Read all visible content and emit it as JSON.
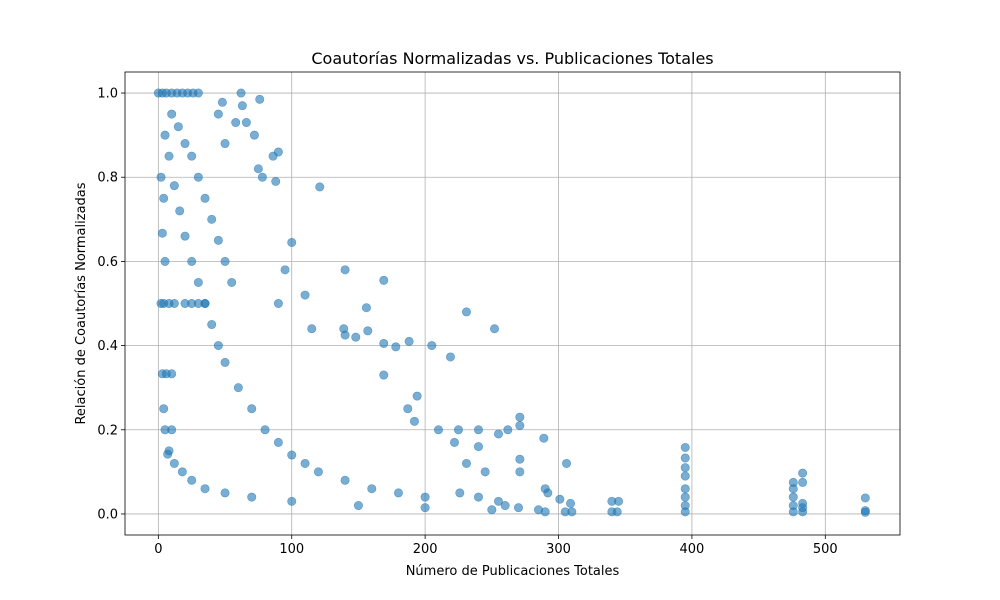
{
  "chart_data": {
    "type": "scatter",
    "title": "Coautorías Normalizadas vs. Publicaciones Totales",
    "xlabel": "Número de Publicaciones Totales",
    "ylabel": "Relación de Coautorías Normalizadas",
    "xlim": [
      -25,
      556
    ],
    "ylim": [
      -0.05,
      1.05
    ],
    "xticks": [
      0,
      100,
      200,
      300,
      400,
      500
    ],
    "xtick_labels": [
      "0",
      "100",
      "200",
      "300",
      "400",
      "500"
    ],
    "yticks": [
      0.0,
      0.2,
      0.4,
      0.6,
      0.8,
      1.0
    ],
    "ytick_labels": [
      "0.0",
      "0.2",
      "0.4",
      "0.6",
      "0.8",
      "1.0"
    ],
    "grid": true,
    "marker_color": "#1f77b4",
    "marker_alpha": 0.6,
    "series": [
      {
        "points": [
          [
            0,
            1.0
          ],
          [
            3,
            1.0
          ],
          [
            6,
            1.0
          ],
          [
            10,
            1.0
          ],
          [
            14,
            1.0
          ],
          [
            18,
            1.0
          ],
          [
            22,
            1.0
          ],
          [
            26,
            1.0
          ],
          [
            30,
            1.0
          ],
          [
            2,
            0.8
          ],
          [
            4,
            0.75
          ],
          [
            3,
            0.667
          ],
          [
            5,
            0.6
          ],
          [
            2,
            0.5
          ],
          [
            4,
            0.5
          ],
          [
            8,
            0.5
          ],
          [
            12,
            0.5
          ],
          [
            20,
            0.5
          ],
          [
            25,
            0.5
          ],
          [
            30,
            0.5
          ],
          [
            35,
            0.5
          ],
          [
            3,
            0.333
          ],
          [
            6,
            0.333
          ],
          [
            10,
            0.333
          ],
          [
            4,
            0.25
          ],
          [
            5,
            0.2
          ],
          [
            10,
            0.2
          ],
          [
            7,
            0.142
          ],
          [
            5,
            0.9
          ],
          [
            8,
            0.85
          ],
          [
            12,
            0.78
          ],
          [
            16,
            0.72
          ],
          [
            20,
            0.66
          ],
          [
            25,
            0.6
          ],
          [
            30,
            0.55
          ],
          [
            35,
            0.5
          ],
          [
            40,
            0.45
          ],
          [
            45,
            0.4
          ],
          [
            50,
            0.36
          ],
          [
            60,
            0.3
          ],
          [
            70,
            0.25
          ],
          [
            80,
            0.2
          ],
          [
            90,
            0.17
          ],
          [
            100,
            0.14
          ],
          [
            110,
            0.12
          ],
          [
            120,
            0.1
          ],
          [
            140,
            0.08
          ],
          [
            160,
            0.06
          ],
          [
            180,
            0.05
          ],
          [
            200,
            0.04
          ],
          [
            10,
            0.95
          ],
          [
            15,
            0.92
          ],
          [
            20,
            0.88
          ],
          [
            25,
            0.85
          ],
          [
            30,
            0.8
          ],
          [
            35,
            0.75
          ],
          [
            40,
            0.7
          ],
          [
            45,
            0.65
          ],
          [
            50,
            0.6
          ],
          [
            55,
            0.55
          ],
          [
            8,
            0.15
          ],
          [
            12,
            0.12
          ],
          [
            18,
            0.1
          ],
          [
            25,
            0.08
          ],
          [
            35,
            0.06
          ],
          [
            50,
            0.05
          ],
          [
            70,
            0.04
          ],
          [
            100,
            0.03
          ],
          [
            150,
            0.02
          ],
          [
            200,
            0.015
          ],
          [
            250,
            0.01
          ],
          [
            62,
            1.0
          ],
          [
            76,
            0.985
          ],
          [
            48,
            0.978
          ],
          [
            58,
            0.93
          ],
          [
            66,
            0.93
          ],
          [
            45,
            0.95
          ],
          [
            63,
            0.97
          ],
          [
            50,
            0.88
          ],
          [
            72,
            0.9
          ],
          [
            90,
            0.86
          ],
          [
            86,
            0.85
          ],
          [
            75,
            0.82
          ],
          [
            78,
            0.8
          ],
          [
            88,
            0.79
          ],
          [
            121,
            0.777
          ],
          [
            100,
            0.645
          ],
          [
            110,
            0.52
          ],
          [
            95,
            0.58
          ],
          [
            90,
            0.5
          ],
          [
            140,
            0.58
          ],
          [
            169,
            0.555
          ],
          [
            156,
            0.49
          ],
          [
            115,
            0.44
          ],
          [
            139,
            0.44
          ],
          [
            140,
            0.425
          ],
          [
            157,
            0.435
          ],
          [
            148,
            0.42
          ],
          [
            169,
            0.405
          ],
          [
            178,
            0.397
          ],
          [
            188,
            0.41
          ],
          [
            205,
            0.4
          ],
          [
            219,
            0.373
          ],
          [
            231,
            0.48
          ],
          [
            252,
            0.44
          ],
          [
            169,
            0.33
          ],
          [
            194,
            0.28
          ],
          [
            187,
            0.25
          ],
          [
            192,
            0.22
          ],
          [
            210,
            0.2
          ],
          [
            225,
            0.2
          ],
          [
            240,
            0.2
          ],
          [
            255,
            0.19
          ],
          [
            222,
            0.17
          ],
          [
            240,
            0.16
          ],
          [
            262,
            0.2
          ],
          [
            271,
            0.23
          ],
          [
            271,
            0.21
          ],
          [
            289,
            0.18
          ],
          [
            306,
            0.12
          ],
          [
            231,
            0.12
          ],
          [
            245,
            0.1
          ],
          [
            271,
            0.13
          ],
          [
            271,
            0.1
          ],
          [
            290,
            0.06
          ],
          [
            292,
            0.05
          ],
          [
            301,
            0.035
          ],
          [
            309,
            0.025
          ],
          [
            226,
            0.05
          ],
          [
            240,
            0.04
          ],
          [
            255,
            0.03
          ],
          [
            260,
            0.02
          ],
          [
            270,
            0.015
          ],
          [
            285,
            0.01
          ],
          [
            290,
            0.005
          ],
          [
            305,
            0.005
          ],
          [
            310,
            0.005
          ],
          [
            340,
            0.03
          ],
          [
            345,
            0.03
          ],
          [
            340,
            0.005
          ],
          [
            344,
            0.005
          ],
          [
            395,
            0.158
          ],
          [
            395,
            0.133
          ],
          [
            395,
            0.11
          ],
          [
            395,
            0.09
          ],
          [
            395,
            0.06
          ],
          [
            395,
            0.04
          ],
          [
            395,
            0.02
          ],
          [
            395,
            0.005
          ],
          [
            476,
            0.075
          ],
          [
            476,
            0.06
          ],
          [
            476,
            0.04
          ],
          [
            476,
            0.02
          ],
          [
            476,
            0.005
          ],
          [
            483,
            0.097
          ],
          [
            483,
            0.075
          ],
          [
            483,
            0.025
          ],
          [
            483,
            0.015
          ],
          [
            483,
            0.005
          ],
          [
            530,
            0.038
          ],
          [
            530,
            0.008
          ],
          [
            530,
            0.004
          ]
        ]
      }
    ]
  }
}
